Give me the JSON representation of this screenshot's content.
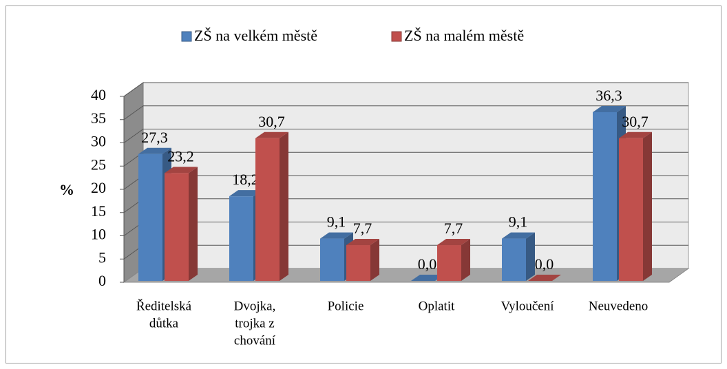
{
  "chart_data": {
    "type": "bar3d",
    "categories": [
      [
        "Ředitelská",
        "důtka"
      ],
      [
        "Dvojka,",
        "trojka z",
        "chování"
      ],
      [
        "Policie"
      ],
      [
        "Oplatit"
      ],
      [
        "Vyloučení"
      ],
      [
        "Neuvedeno"
      ]
    ],
    "series": [
      {
        "name": "ZŠ na velkém městě",
        "color": "#4f81bd",
        "values": [
          27.3,
          18.2,
          9.1,
          0.0,
          9.1,
          36.3
        ],
        "value_labels": [
          "27,3",
          "18,2",
          "9,1",
          "0,0",
          "9,1",
          "36,3"
        ]
      },
      {
        "name": "ZŠ na malém městě",
        "color": "#c0504d",
        "values": [
          23.2,
          30.7,
          7.7,
          7.7,
          0.0,
          30.7
        ],
        "value_labels": [
          "23,2",
          "30,7",
          "7,7",
          "7,7",
          "0,0",
          "30,7"
        ]
      }
    ],
    "ylabel": "%",
    "ylim": [
      0,
      40
    ],
    "yticks": [
      0,
      5,
      10,
      15,
      20,
      25,
      30,
      35,
      40
    ],
    "grid": true,
    "legend": "top"
  }
}
